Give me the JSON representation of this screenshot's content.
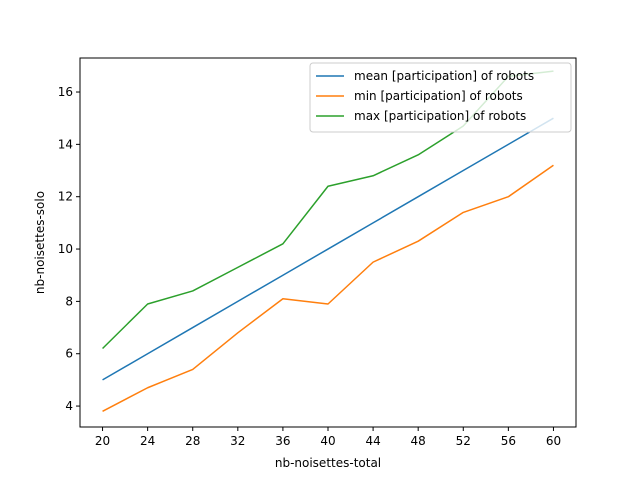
{
  "chart_data": {
    "type": "line",
    "title": "",
    "xlabel": "nb-noisettes-total",
    "ylabel": "nb-noisettes-solo",
    "x": [
      20,
      24,
      28,
      32,
      36,
      40,
      44,
      48,
      52,
      56,
      60
    ],
    "xticks": [
      20,
      24,
      28,
      32,
      36,
      40,
      44,
      48,
      52,
      56,
      60
    ],
    "yticks": [
      4,
      6,
      8,
      10,
      12,
      14,
      16
    ],
    "xlim": [
      18.0,
      62.0
    ],
    "ylim": [
      3.2,
      17.3
    ],
    "grid": false,
    "legend_position": "top-right",
    "series": [
      {
        "name": "mean [participation] of robots",
        "color": "#1f77b4",
        "values": [
          5.0,
          6.0,
          7.0,
          8.0,
          9.0,
          10.0,
          11.0,
          12.0,
          13.0,
          14.0,
          15.0
        ]
      },
      {
        "name": "min [participation] of robots",
        "color": "#ff7f0e",
        "values": [
          3.8,
          4.7,
          5.4,
          6.8,
          8.1,
          7.9,
          9.5,
          10.3,
          11.4,
          12.0,
          13.2
        ]
      },
      {
        "name": "max [participation] of robots",
        "color": "#2ca02c",
        "values": [
          6.2,
          7.9,
          8.4,
          9.3,
          10.2,
          12.4,
          12.8,
          13.6,
          14.7,
          16.6,
          16.8
        ]
      }
    ]
  }
}
